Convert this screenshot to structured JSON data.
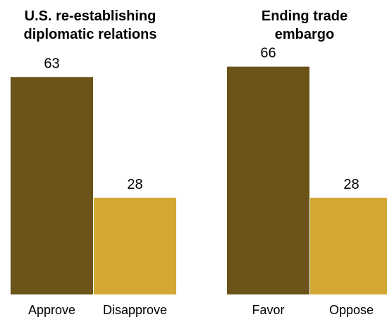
{
  "chart_data": [
    {
      "type": "bar",
      "title_lines": [
        "U.S. re-establishing",
        "diplomatic relations"
      ],
      "categories": [
        "Approve",
        "Disapprove"
      ],
      "values": [
        63,
        28
      ],
      "colors": [
        "#6b5319",
        "#d2a733"
      ],
      "ylim": [
        0,
        100
      ],
      "grid": false,
      "legend": "none"
    },
    {
      "type": "bar",
      "title_lines": [
        "Ending trade",
        "embargo"
      ],
      "categories": [
        "Favor",
        "Oppose"
      ],
      "values": [
        66,
        28
      ],
      "colors": [
        "#6b5319",
        "#d2a733"
      ],
      "ylim": [
        0,
        100
      ],
      "grid": false,
      "legend": "none"
    }
  ]
}
